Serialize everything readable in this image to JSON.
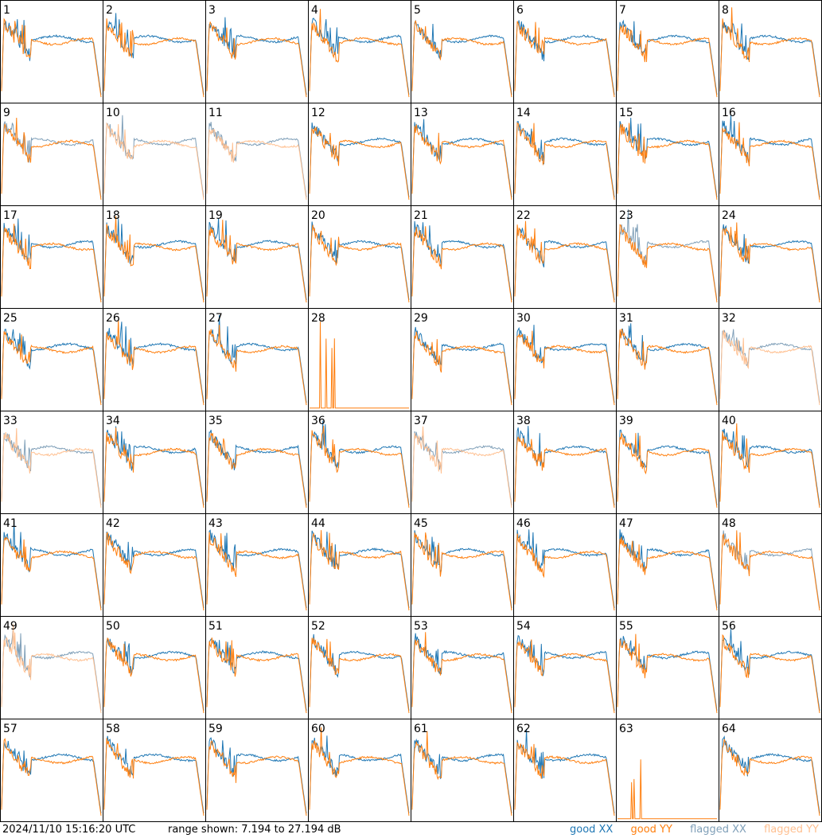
{
  "chart_data": {
    "type": "line",
    "grid": {
      "rows": 8,
      "cols": 8
    },
    "panels": [
      "1",
      "2",
      "3",
      "4",
      "5",
      "6",
      "7",
      "8",
      "9",
      "10",
      "11",
      "12",
      "13",
      "14",
      "15",
      "16",
      "17",
      "18",
      "19",
      "20",
      "21",
      "22",
      "23",
      "24",
      "25",
      "26",
      "27",
      "28",
      "29",
      "30",
      "31",
      "32",
      "33",
      "34",
      "35",
      "36",
      "37",
      "38",
      "39",
      "40",
      "41",
      "42",
      "43",
      "44",
      "45",
      "46",
      "47",
      "48",
      "49",
      "50",
      "51",
      "52",
      "53",
      "54",
      "55",
      "56",
      "57",
      "58",
      "59",
      "60",
      "61",
      "62",
      "63",
      "64"
    ],
    "value_range_db": [
      7.194,
      27.194
    ],
    "series": [
      {
        "name": "good XX",
        "color": "#1f77b4"
      },
      {
        "name": "good YY",
        "color": "#ff7f0e"
      },
      {
        "name": "flagged XX",
        "color": "#7f9fb8"
      },
      {
        "name": "flagged YY",
        "color": "#ffc091"
      }
    ],
    "panel_status": {
      "10": "flagged",
      "11": "flagged",
      "23": "flagged-xx",
      "32": "flagged",
      "33": "flagged",
      "37": "flagged",
      "48": "flagged-xx",
      "49": "flagged",
      "9": "flagged-xx"
    }
  },
  "footer": {
    "timestamp": "2024/11/10 15:16:20 UTC",
    "range": "range shown: 7.194 to 27.194 dB"
  },
  "legend": [
    "good XX",
    "good YY",
    "flagged XX",
    "flagged YY"
  ],
  "colors": {
    "good_xx": "#1f77b4",
    "good_yy": "#ff7f0e",
    "flagged_xx": "#7f9fb8",
    "flagged_yy": "#ffc091"
  }
}
